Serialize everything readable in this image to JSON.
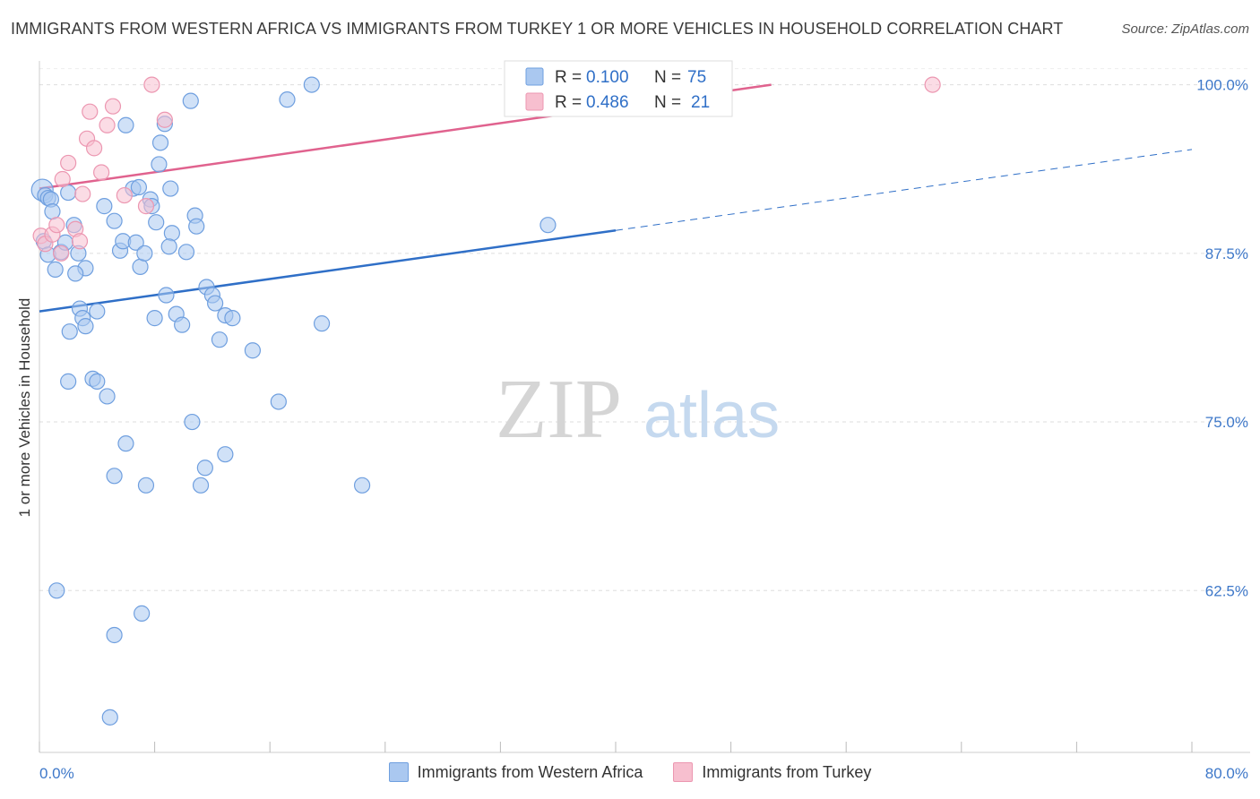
{
  "title": "IMMIGRANTS FROM WESTERN AFRICA VS IMMIGRANTS FROM TURKEY 1 OR MORE VEHICLES IN HOUSEHOLD CORRELATION CHART",
  "source": "Source: ZipAtlas.com",
  "watermark": {
    "zip": "ZIP",
    "atlas": "atlas"
  },
  "chart_data": {
    "type": "scatter",
    "title": "IMMIGRANTS FROM WESTERN AFRICA VS IMMIGRANTS FROM TURKEY 1 OR MORE VEHICLES IN HOUSEHOLD CORRELATION CHART",
    "xlabel": "",
    "ylabel": "1 or more Vehicles in Household",
    "xlim": [
      0,
      80
    ],
    "ylim": [
      50.5,
      101.5
    ],
    "x_tick_labels": [
      "0.0%",
      "80.0%"
    ],
    "y_ticks": [
      62.5,
      75.0,
      87.5,
      100.0
    ],
    "y_tick_labels": [
      "62.5%",
      "75.0%",
      "87.5%",
      "100.0%"
    ],
    "legend_position": "top-center",
    "series": [
      {
        "name": "Immigrants from Western Africa",
        "color": "#aac8f0",
        "stroke": "#6f9fdf",
        "line_color": "#2f6fc7",
        "R": "0.100",
        "N": "75",
        "trend": {
          "x0": 0,
          "y0": 83.2,
          "x1": 40,
          "y1": 89.2,
          "dash_x1": 80,
          "dash_y1": 95.2
        },
        "points": [
          [
            0.2,
            92.2
          ],
          [
            0.4,
            91.8
          ],
          [
            0.6,
            91.6
          ],
          [
            0.8,
            91.5
          ],
          [
            0.9,
            90.6
          ],
          [
            0.3,
            88.4
          ],
          [
            0.6,
            87.4
          ],
          [
            1.1,
            86.3
          ],
          [
            1.5,
            87.6
          ],
          [
            1.8,
            88.3
          ],
          [
            2.0,
            92.0
          ],
          [
            2.4,
            89.6
          ],
          [
            2.7,
            87.5
          ],
          [
            3.2,
            86.4
          ],
          [
            2.5,
            86.0
          ],
          [
            4.5,
            91.0
          ],
          [
            5.2,
            89.9
          ],
          [
            5.6,
            87.7
          ],
          [
            5.8,
            88.4
          ],
          [
            6.7,
            88.3
          ],
          [
            6.0,
            97.0
          ],
          [
            6.5,
            92.3
          ],
          [
            6.9,
            92.4
          ],
          [
            7.0,
            86.5
          ],
          [
            7.3,
            87.5
          ],
          [
            7.7,
            91.5
          ],
          [
            7.8,
            91.0
          ],
          [
            8.1,
            89.8
          ],
          [
            8.3,
            94.1
          ],
          [
            8.4,
            95.7
          ],
          [
            8.7,
            97.1
          ],
          [
            8.8,
            84.4
          ],
          [
            9.1,
            92.3
          ],
          [
            9.2,
            89.0
          ],
          [
            9.0,
            88.0
          ],
          [
            10.2,
            87.6
          ],
          [
            10.5,
            98.8
          ],
          [
            10.8,
            90.3
          ],
          [
            10.9,
            89.5
          ],
          [
            11.6,
            85.0
          ],
          [
            12.0,
            84.4
          ],
          [
            12.2,
            83.8
          ],
          [
            12.9,
            82.9
          ],
          [
            12.5,
            81.1
          ],
          [
            13.4,
            82.7
          ],
          [
            9.5,
            83.0
          ],
          [
            8.0,
            82.7
          ],
          [
            9.9,
            82.2
          ],
          [
            2.8,
            83.4
          ],
          [
            3.0,
            82.7
          ],
          [
            3.2,
            82.1
          ],
          [
            4.0,
            83.2
          ],
          [
            2.1,
            81.7
          ],
          [
            2.0,
            78.0
          ],
          [
            3.7,
            78.2
          ],
          [
            4.0,
            78.0
          ],
          [
            4.7,
            76.9
          ],
          [
            10.6,
            75.0
          ],
          [
            11.2,
            70.3
          ],
          [
            11.5,
            71.6
          ],
          [
            12.9,
            72.6
          ],
          [
            6.0,
            73.4
          ],
          [
            5.2,
            71.0
          ],
          [
            7.4,
            70.3
          ],
          [
            14.8,
            80.3
          ],
          [
            16.6,
            76.5
          ],
          [
            17.2,
            98.9
          ],
          [
            18.9,
            100.0
          ],
          [
            19.6,
            82.3
          ],
          [
            22.4,
            70.3
          ],
          [
            35.3,
            89.6
          ],
          [
            1.2,
            62.5
          ],
          [
            5.2,
            59.2
          ],
          [
            7.1,
            60.8
          ],
          [
            4.9,
            53.1
          ]
        ]
      },
      {
        "name": "Immigrants from Turkey",
        "color": "#f7bfcf",
        "stroke": "#ec97b1",
        "line_color": "#e0628e",
        "R": "0.486",
        "N": "21",
        "trend": {
          "x0": 0,
          "y0": 92.3,
          "x1": 50.8,
          "y1": 100.0
        },
        "points": [
          [
            0.1,
            88.8
          ],
          [
            0.4,
            88.2
          ],
          [
            0.9,
            88.9
          ],
          [
            1.2,
            89.6
          ],
          [
            1.5,
            87.5
          ],
          [
            1.6,
            93.0
          ],
          [
            2.0,
            94.2
          ],
          [
            2.5,
            89.3
          ],
          [
            2.8,
            88.4
          ],
          [
            3.0,
            91.9
          ],
          [
            3.3,
            96.0
          ],
          [
            3.5,
            98.0
          ],
          [
            3.8,
            95.3
          ],
          [
            4.3,
            93.5
          ],
          [
            4.7,
            97.0
          ],
          [
            5.1,
            98.4
          ],
          [
            5.9,
            91.8
          ],
          [
            7.4,
            91.0
          ],
          [
            8.7,
            97.4
          ],
          [
            7.8,
            100.0
          ],
          [
            62.0,
            100.0
          ]
        ]
      }
    ]
  }
}
